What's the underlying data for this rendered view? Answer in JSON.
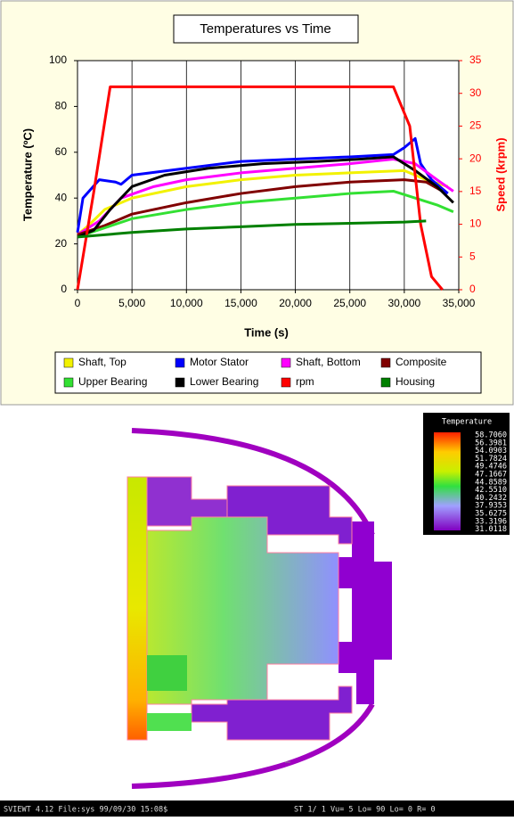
{
  "chart_data": {
    "type": "line",
    "title": "Temperatures vs Time",
    "xlabel": "Time (s)",
    "ylabel": "Temperature (ºC)",
    "y2label": "Speed (krpm)",
    "xlim": [
      0,
      35000
    ],
    "xticks": [
      0,
      {
        "value": 5000,
        "label": "5,000"
      },
      {
        "value": 10000,
        "label": "10,000"
      },
      {
        "value": 15000,
        "label": "15,000"
      },
      {
        "value": 20000,
        "label": "20,000"
      },
      {
        "value": 25000,
        "label": "25,000"
      },
      {
        "value": 30000,
        "label": "30,000"
      },
      {
        "value": 35000,
        "label": "35,000"
      }
    ],
    "ylim": [
      0,
      100
    ],
    "yticks": [
      0,
      20,
      40,
      60,
      80,
      100
    ],
    "y2lim": [
      0,
      35
    ],
    "y2ticks": [
      0,
      5,
      10,
      15,
      20,
      25,
      30,
      35
    ],
    "grid": true,
    "series": [
      {
        "name": "Shaft, Top",
        "color": "#f2f200",
        "x": [
          0,
          1000,
          2500,
          5000,
          10000,
          15000,
          20000,
          25000,
          30000,
          32000,
          34000
        ],
        "values": [
          24,
          28,
          35,
          40,
          45,
          48,
          50,
          51,
          52,
          48,
          45
        ]
      },
      {
        "name": "Motor Stator",
        "color": "#0000ff",
        "x": [
          0,
          500,
          2000,
          3500,
          4000,
          5000,
          10000,
          15000,
          20000,
          25000,
          29000,
          30000,
          31000,
          31500,
          32500,
          34000
        ],
        "values": [
          25,
          40,
          48,
          47,
          46,
          50,
          53,
          56,
          57,
          58,
          59,
          62,
          66,
          55,
          48,
          42
        ]
      },
      {
        "name": "Shaft, Bottom",
        "color": "#ff00ff",
        "x": [
          0,
          2000,
          4000,
          7000,
          10000,
          15000,
          20000,
          25000,
          29000,
          31000,
          33000,
          34500
        ],
        "values": [
          24,
          30,
          40,
          45,
          48,
          51,
          53,
          55,
          57,
          55,
          48,
          43
        ]
      },
      {
        "name": "Composite",
        "color": "#800000",
        "x": [
          0,
          2500,
          5000,
          10000,
          15000,
          20000,
          25000,
          30000,
          32000,
          33500
        ],
        "values": [
          24,
          28,
          33,
          38,
          42,
          45,
          47,
          48,
          47,
          43
        ]
      },
      {
        "name": "Upper Bearing",
        "color": "#33e033",
        "x": [
          0,
          2500,
          5000,
          10000,
          15000,
          20000,
          25000,
          29000,
          31000,
          33000,
          34500
        ],
        "values": [
          23,
          27,
          31,
          35,
          38,
          40,
          42,
          43,
          40,
          37,
          34
        ]
      },
      {
        "name": "Lower Bearing",
        "color": "#000000",
        "x": [
          0,
          1500,
          3000,
          5000,
          8000,
          12000,
          17000,
          22000,
          26000,
          29000,
          31000,
          33000,
          34500
        ],
        "values": [
          23,
          26,
          35,
          45,
          50,
          53,
          55,
          56,
          57,
          58,
          52,
          45,
          38
        ]
      },
      {
        "name": "rpm",
        "color": "#ff0000",
        "axis": "y2",
        "x": [
          0,
          1500,
          3000,
          29000,
          30500,
          31500,
          32500,
          33500
        ],
        "values": [
          0,
          15,
          31,
          31,
          25,
          10,
          2,
          0
        ]
      },
      {
        "name": "Housing",
        "color": "#008000",
        "x": [
          0,
          5000,
          10000,
          15000,
          20000,
          25000,
          30000,
          32000
        ],
        "values": [
          23,
          25,
          26.5,
          27.5,
          28.5,
          29,
          29.5,
          30
        ]
      }
    ]
  },
  "fea_view": {
    "legend": {
      "title": "Temperature",
      "labels": [
        "58.7060",
        "56.3981",
        "54.0903",
        "51.7824",
        "49.4746",
        "47.1667",
        "44.8589",
        "42.5510",
        "40.2432",
        "37.9353",
        "35.6275",
        "33.3196",
        "31.0118"
      ]
    },
    "status_bar": [
      "SVIEWT 4.12 File:sys 99/09/30 15:08$",
      "ST 1/ 1 Vu= 5 Lo= 90 Lo= 0 R= 0"
    ]
  }
}
